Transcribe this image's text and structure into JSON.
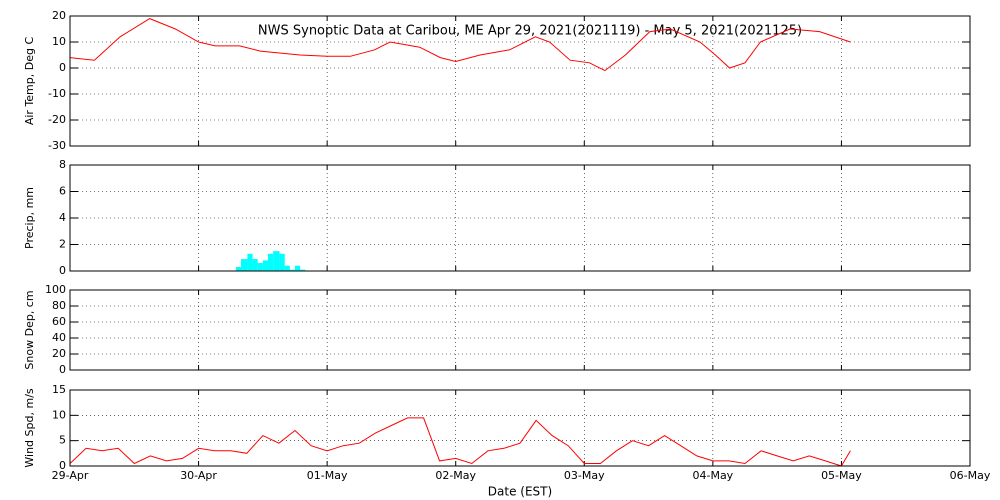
{
  "chart_data": [
    {
      "type": "line",
      "title": "NWS Synoptic Data at Caribou, ME   Apr 29, 2021(2021119) - May  5, 2021(2021125)",
      "ylabel": "Air Temp, Deg C",
      "xlim": [
        0,
        7
      ],
      "ylim": [
        -30,
        20
      ],
      "yticks": [
        -30,
        -20,
        -10,
        0,
        10,
        20
      ],
      "grid": true,
      "series": [
        {
          "name": "Air Temp",
          "color": "#ff0000",
          "x": [
            0,
            0.19,
            0.39,
            0.62,
            0.82,
            1.0,
            1.13,
            1.32,
            1.48,
            1.79,
            2.0,
            2.18,
            2.37,
            2.49,
            2.72,
            2.88,
            3.0,
            3.19,
            3.42,
            3.62,
            3.73,
            3.89,
            4.04,
            4.16,
            4.32,
            4.51,
            4.67,
            4.9,
            5.02,
            5.13,
            5.25,
            5.37,
            5.6,
            5.83,
            6.07
          ],
          "values": [
            4,
            3,
            12,
            19,
            15,
            10,
            8.5,
            8.5,
            6.5,
            5,
            4.5,
            4.5,
            7,
            10,
            8,
            4,
            2.5,
            5,
            7,
            12,
            10,
            3,
            2,
            -1,
            5,
            14,
            15,
            10,
            5,
            0,
            2,
            10,
            15,
            14,
            10
          ]
        }
      ]
    },
    {
      "type": "histogram",
      "ylabel": "Precip, mm",
      "xlim": [
        0,
        7
      ],
      "ylim": [
        0,
        8
      ],
      "yticks": [
        0,
        2,
        4,
        6,
        8
      ],
      "grid": true,
      "color": "#00ffff",
      "bins": [
        1.29,
        1.33,
        1.38,
        1.42,
        1.46,
        1.5,
        1.54,
        1.58,
        1.63,
        1.67,
        1.71,
        1.75,
        1.79,
        1.83
      ],
      "values": [
        0.3,
        0.9,
        1.3,
        0.9,
        0.6,
        0.8,
        1.3,
        1.5,
        1.3,
        0.4,
        0.1,
        0.4,
        0.1
      ]
    },
    {
      "type": "line",
      "ylabel": "Snow Dep, cm",
      "xlim": [
        0,
        7
      ],
      "ylim": [
        0,
        100
      ],
      "yticks": [
        0,
        20,
        40,
        60,
        80,
        100
      ],
      "grid": true,
      "series": []
    },
    {
      "type": "line",
      "ylabel": "Wind Spd, m/s",
      "xlabel": "Date (EST)",
      "xlim": [
        0,
        7
      ],
      "ylim": [
        0,
        15
      ],
      "yticks": [
        0,
        5,
        10,
        15
      ],
      "grid": true,
      "xticks": [
        {
          "value": 0,
          "label": "29-Apr"
        },
        {
          "value": 1,
          "label": "30-Apr"
        },
        {
          "value": 2,
          "label": "01-May"
        },
        {
          "value": 3,
          "label": "02-May"
        },
        {
          "value": 4,
          "label": "03-May"
        },
        {
          "value": 5,
          "label": "04-May"
        },
        {
          "value": 6,
          "label": "05-May"
        },
        {
          "value": 7,
          "label": "06-May"
        }
      ],
      "series": [
        {
          "name": "Wind Speed",
          "color": "#ff0000",
          "x": [
            0,
            0.125,
            0.25,
            0.375,
            0.5,
            0.625,
            0.75,
            0.875,
            1.0,
            1.125,
            1.25,
            1.375,
            1.5,
            1.625,
            1.75,
            1.875,
            2.0,
            2.125,
            2.25,
            2.375,
            2.5,
            2.625,
            2.75,
            2.875,
            3.0,
            3.125,
            3.25,
            3.375,
            3.5,
            3.625,
            3.75,
            3.875,
            4.0,
            4.125,
            4.25,
            4.375,
            4.5,
            4.625,
            4.75,
            4.875,
            5.0,
            5.125,
            5.25,
            5.375,
            5.5,
            5.625,
            5.75,
            5.875,
            6.0,
            6.07
          ],
          "values": [
            0.5,
            3.5,
            3,
            3.5,
            0.5,
            2,
            1,
            1.5,
            3.5,
            3,
            3,
            2.5,
            6,
            4.5,
            7,
            4,
            3,
            4,
            4.5,
            6.5,
            8,
            9.5,
            9.5,
            1,
            1.5,
            0.5,
            3,
            3.5,
            4.5,
            9,
            6,
            4,
            0.5,
            0.5,
            3,
            5,
            4,
            6,
            4,
            2,
            1,
            1,
            0.5,
            3,
            2,
            1,
            2,
            1,
            0,
            3
          ]
        }
      ]
    }
  ]
}
